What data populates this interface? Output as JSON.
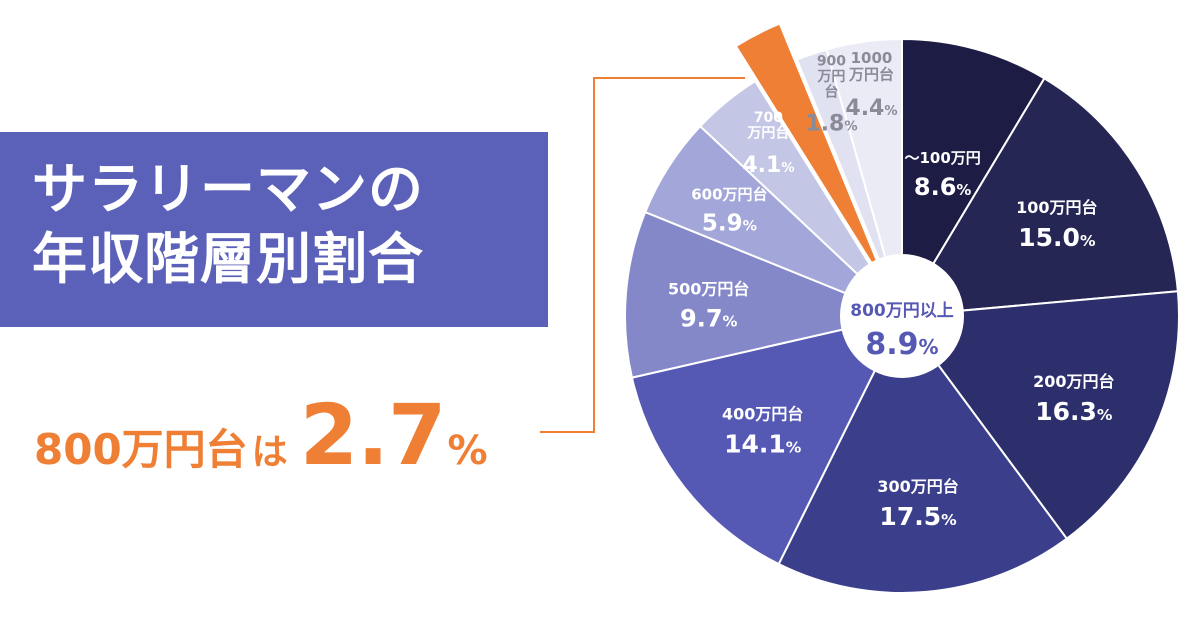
{
  "title": {
    "line1": "サラリーマンの",
    "line2": "年収階層別割合"
  },
  "headline": {
    "category": "800万円台",
    "particle": "は",
    "value": "2.7",
    "unit": "%"
  },
  "chart_data": {
    "type": "pie",
    "title": "サラリーマンの年収階層別割合",
    "unit": "%",
    "slices": [
      {
        "label": "～100万円",
        "value": 8.6,
        "display": "8.6",
        "color": "#1c1c45"
      },
      {
        "label": "100万円台",
        "value": 15.0,
        "display": "15.0",
        "color": "#262655"
      },
      {
        "label": "200万円台",
        "value": 16.3,
        "display": "16.3",
        "color": "#2d2f6c"
      },
      {
        "label": "300万円台",
        "value": 17.5,
        "display": "17.5",
        "color": "#3b3e8b"
      },
      {
        "label": "400万円台",
        "value": 14.1,
        "display": "14.1",
        "color": "#5659b4"
      },
      {
        "label": "500万円台",
        "value": 9.7,
        "display": "9.7",
        "color": "#8488c9"
      },
      {
        "label": "600万円台",
        "value": 5.9,
        "display": "5.9",
        "color": "#a3a6d8"
      },
      {
        "label": "700万円台",
        "value": 4.1,
        "display": "4.1",
        "color": "#c4c6e6"
      },
      {
        "label": "800万円台",
        "value": 2.7,
        "display": "2.7",
        "color": "#ee7f35",
        "exploded": true
      },
      {
        "label": "900万円台",
        "value": 1.8,
        "display": "1.8",
        "color": "#e1e2f1"
      },
      {
        "label": "1000万円台",
        "value": 4.4,
        "display": "4.4",
        "color": "#ebebf6"
      }
    ],
    "center": {
      "label": "800万円以上",
      "value": "8.9",
      "unit": "%"
    }
  }
}
